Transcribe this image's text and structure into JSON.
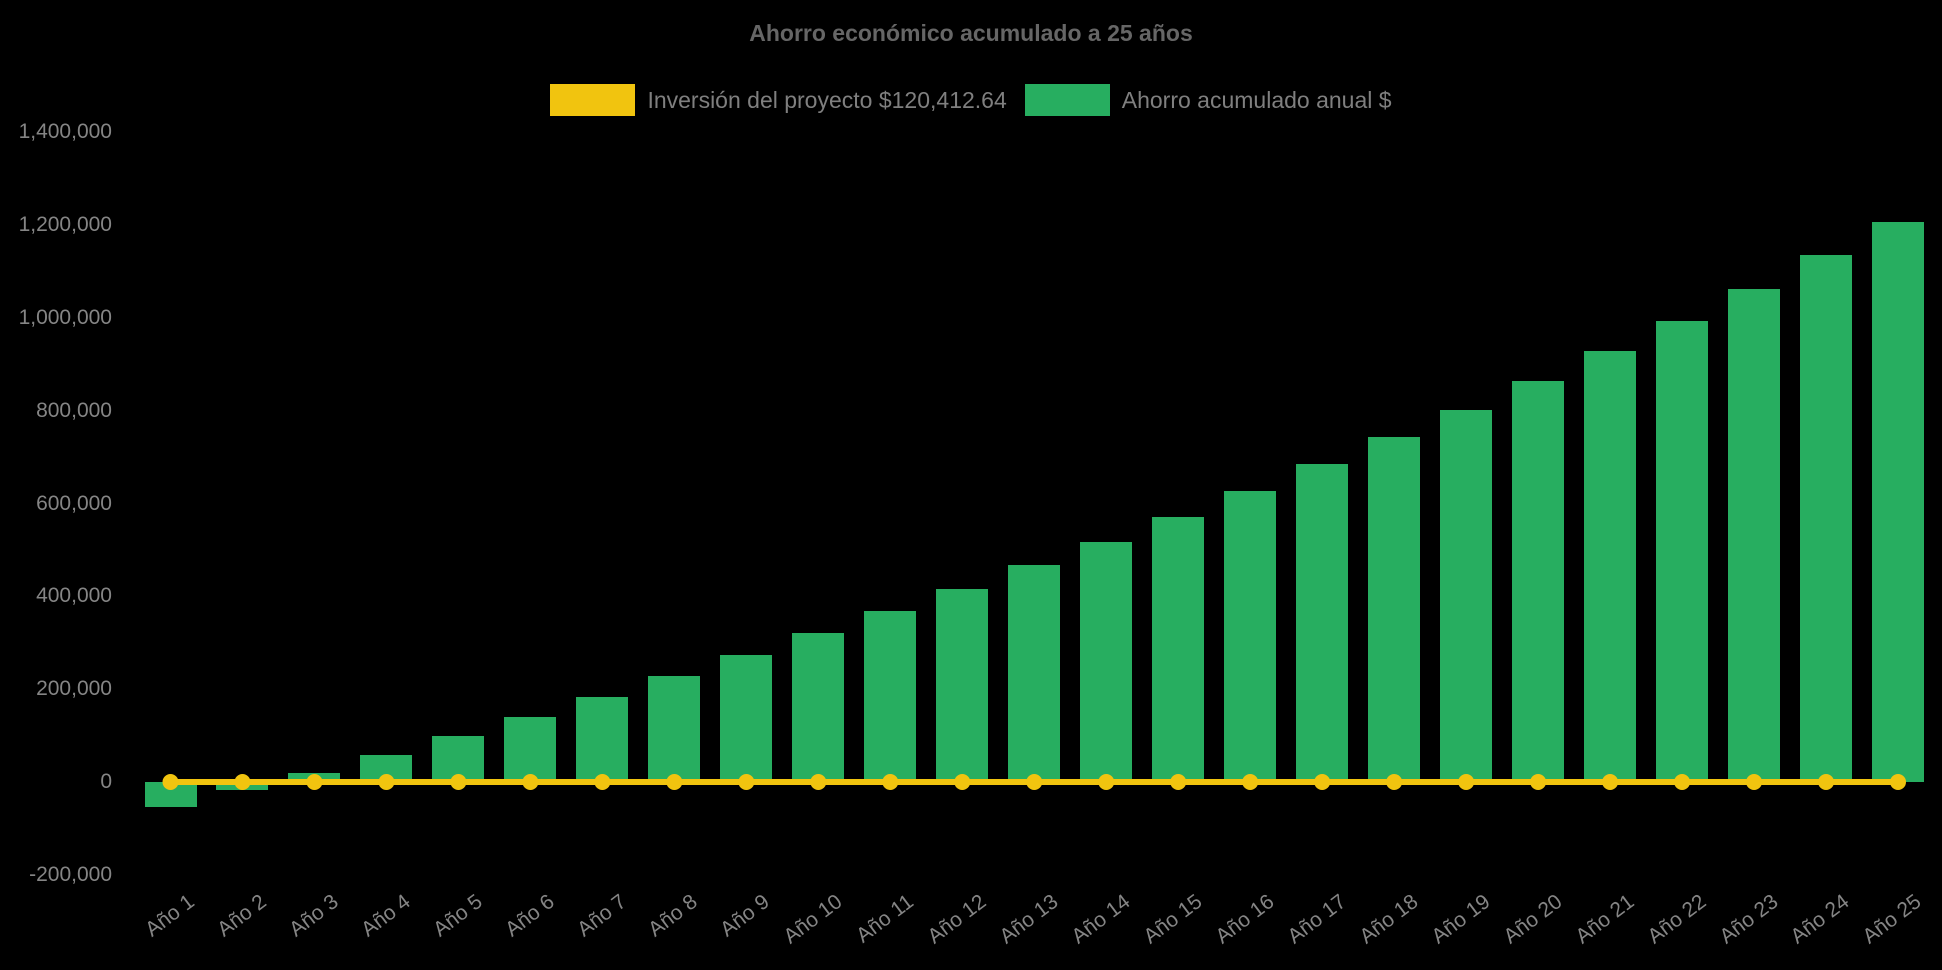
{
  "title": "Ahorro económico acumulado a 25 años",
  "legend": [
    {
      "label": "Inversión del proyecto $120,412.64",
      "color": "#F1C40F"
    },
    {
      "label": "Ahorro acumulado anual $",
      "color": "#27AE60"
    }
  ],
  "chart_data": {
    "type": "bar",
    "title": "Ahorro económico acumulado a 25 años",
    "categories": [
      "Año 1",
      "Año 2",
      "Año 3",
      "Año 4",
      "Año 5",
      "Año 6",
      "Año 7",
      "Año 8",
      "Año 9",
      "Año 10",
      "Año 11",
      "Año 12",
      "Año 13",
      "Año 14",
      "Año 15",
      "Año 16",
      "Año 17",
      "Año 18",
      "Año 19",
      "Año 20",
      "Año 21",
      "Año 22",
      "Año 23",
      "Año 24",
      "Año 25"
    ],
    "series": [
      {
        "name": "Ahorro acumulado anual $",
        "type": "column",
        "color": "#27AE60",
        "values": [
          -54000,
          -17500,
          20000,
          59000,
          99500,
          141000,
          184000,
          228500,
          274000,
          321000,
          369000,
          417000,
          467000,
          518000,
          572000,
          628000,
          685000,
          743000,
          802000,
          864000,
          928000,
          994000,
          1062000,
          1135000,
          1207000
        ]
      },
      {
        "name": "Inversión del proyecto $120,412.64",
        "type": "line",
        "color": "#F1C40F",
        "constant_value": 120412.64,
        "plotted_level": 0,
        "marker": "circle"
      }
    ],
    "ylim": [
      -200000,
      1400000
    ],
    "ytick_step": 200000,
    "ytick_labels": [
      "1,400,000",
      "1,200,000",
      "1,000,000",
      "800,000",
      "600,000",
      "400,000",
      "200,000",
      "0",
      "-200,000"
    ],
    "grid": false,
    "legend_position": "top",
    "x_label_rotation_deg": -37
  }
}
